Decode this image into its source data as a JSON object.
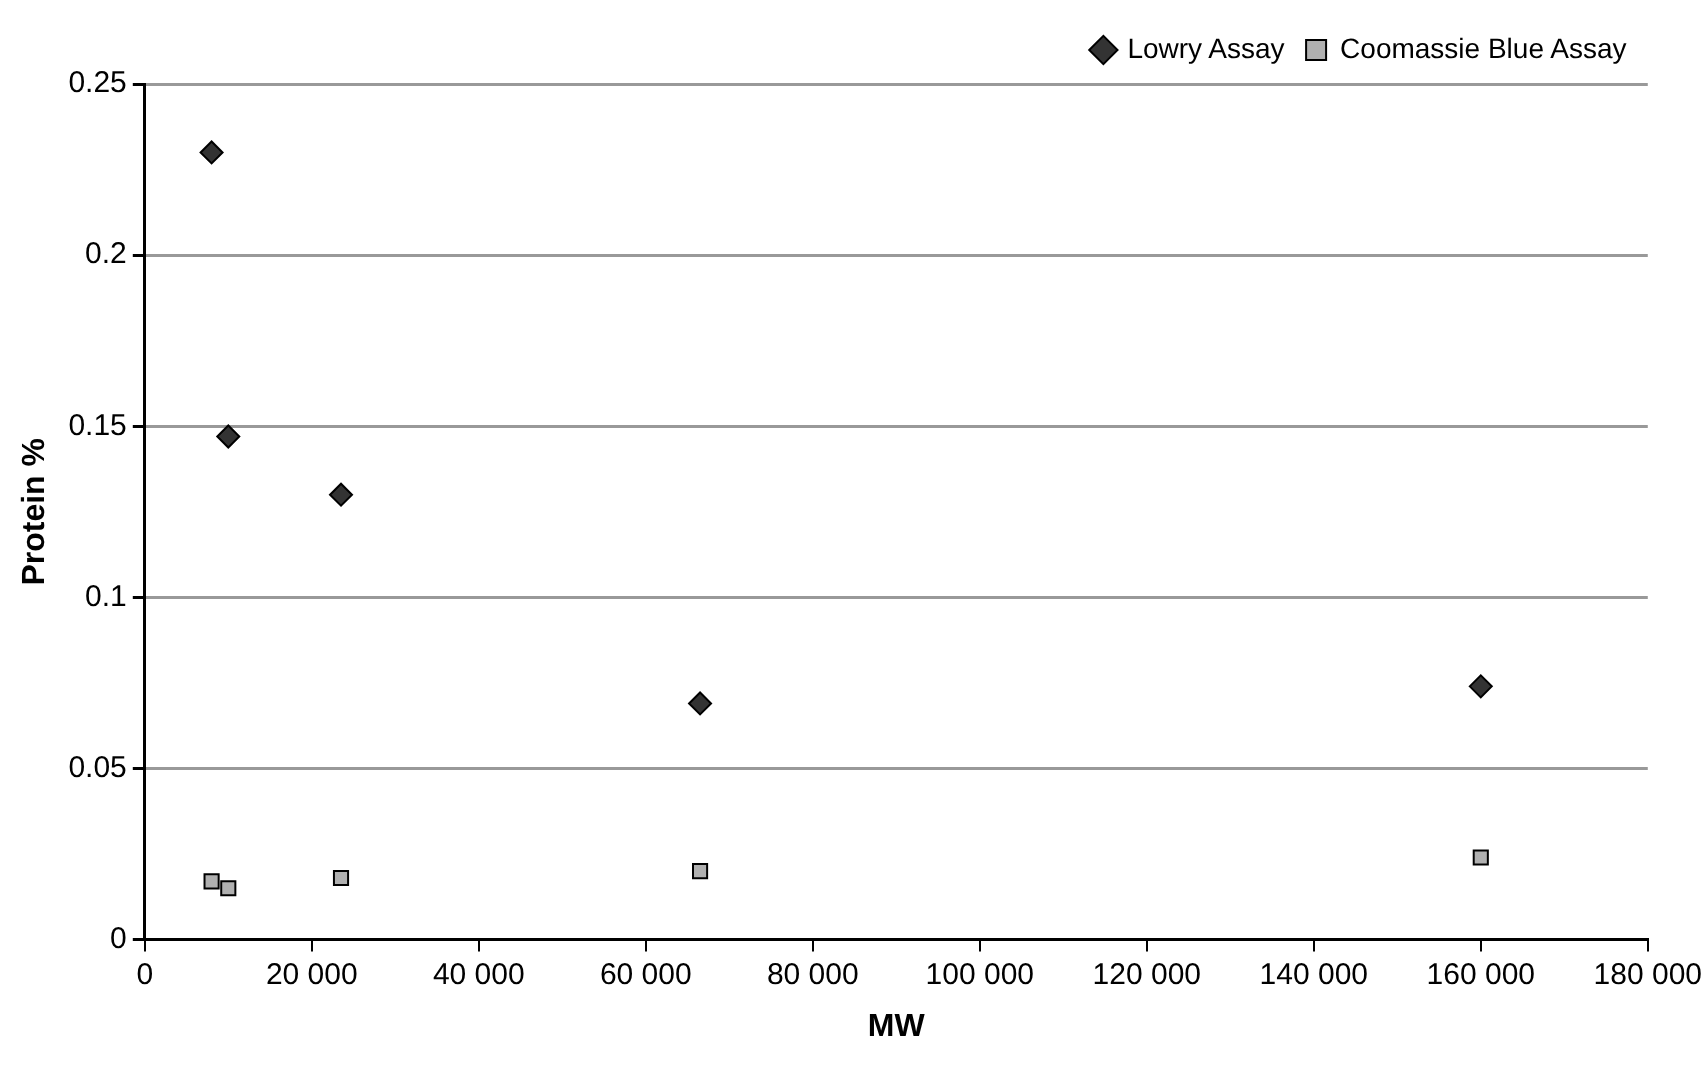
{
  "chart_data": {
    "type": "scatter",
    "xlabel": "MW",
    "ylabel": "Protein %",
    "xlim": [
      0,
      180000
    ],
    "xticks": [
      {
        "value": 0,
        "label": "0"
      },
      {
        "value": 20000,
        "label": "20 000"
      },
      {
        "value": 40000,
        "label": "40 000"
      },
      {
        "value": 60000,
        "label": "60 000"
      },
      {
        "value": 80000,
        "label": "80 000"
      },
      {
        "value": 100000,
        "label": "100 000"
      },
      {
        "value": 120000,
        "label": "120 000"
      },
      {
        "value": 140000,
        "label": "140 000"
      },
      {
        "value": 160000,
        "label": "160 000"
      },
      {
        "value": 180000,
        "label": "180 000"
      }
    ],
    "ylim": [
      0,
      0.25
    ],
    "yticks": [
      0,
      0.05,
      0.1,
      0.15,
      0.2,
      0.25
    ],
    "grid": "y",
    "legend": "top right",
    "series": [
      {
        "name": "Lowry Assay",
        "color": "#333333",
        "marker": "diamond",
        "x": [
          8000,
          10000,
          23500,
          66500,
          160000
        ],
        "values": [
          0.23,
          0.147,
          0.13,
          0.069,
          0.074
        ]
      },
      {
        "name": "Coomassie Blue Assay",
        "color": "#b0b0b0",
        "marker": "square",
        "x": [
          8000,
          10000,
          23500,
          66500,
          160000
        ],
        "values": [
          0.017,
          0.015,
          0.018,
          0.02,
          0.024
        ]
      }
    ]
  }
}
